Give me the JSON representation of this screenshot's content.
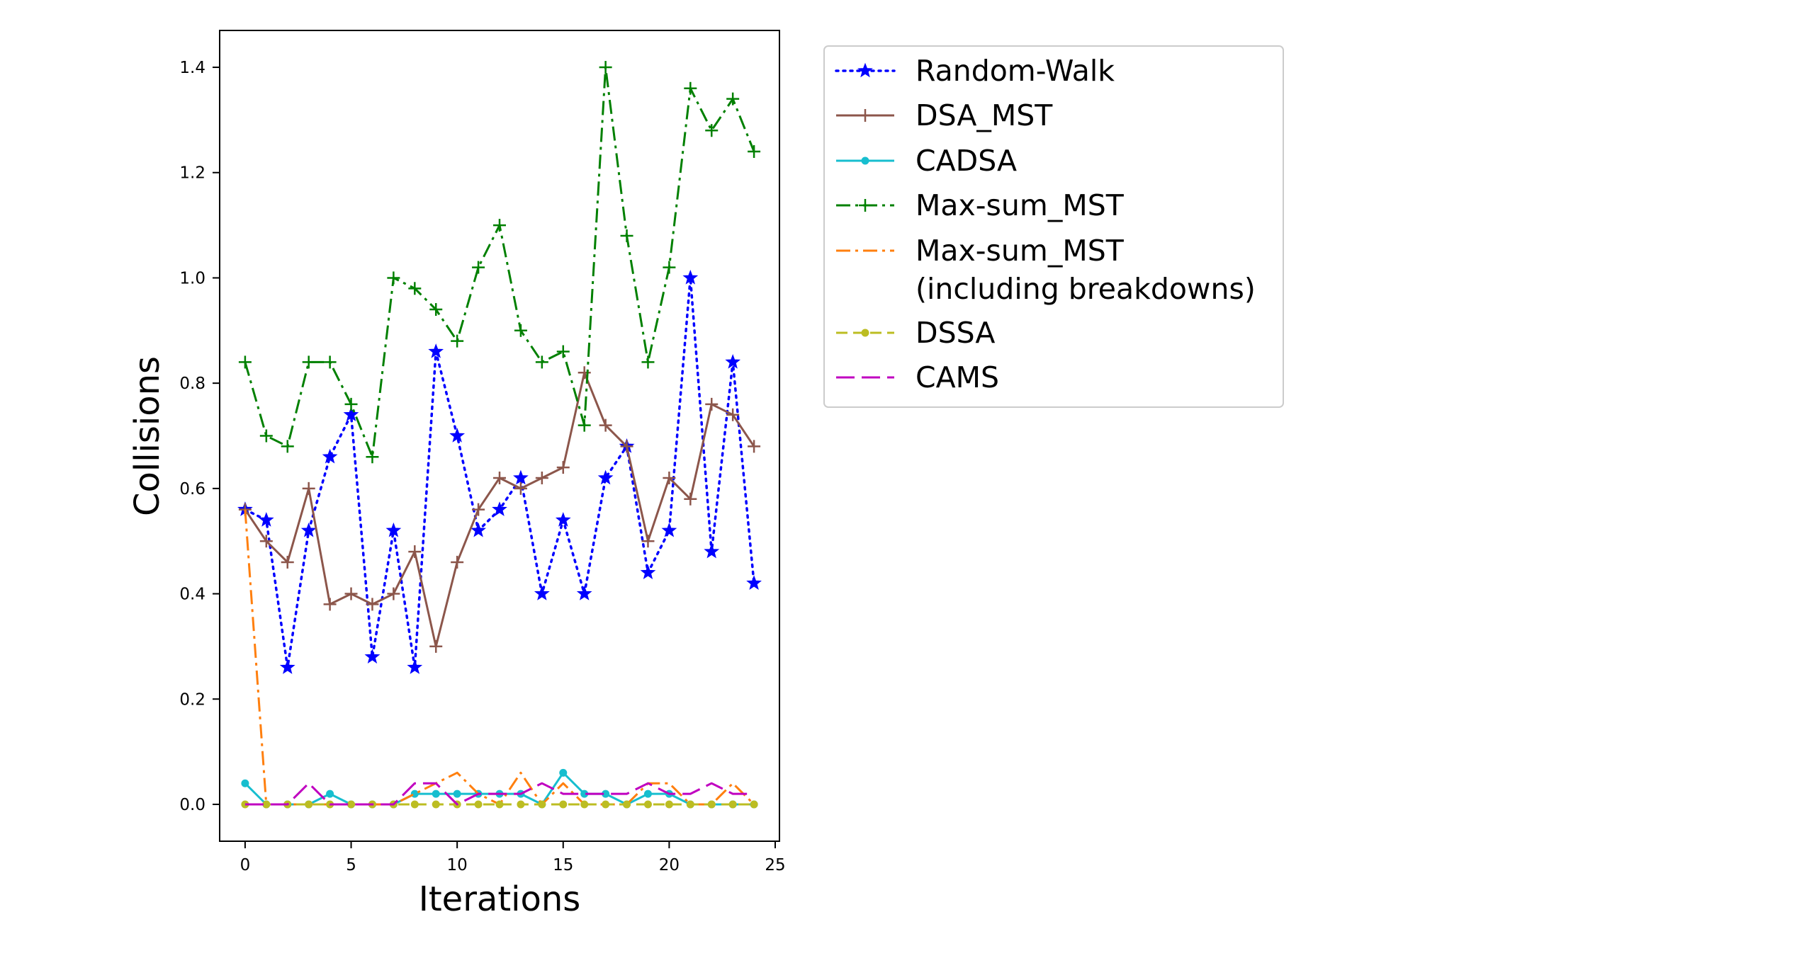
{
  "chart_data": {
    "type": "line",
    "xlabel": "Iterations",
    "ylabel": "Collisions",
    "xlim": [
      -1.2,
      25.2
    ],
    "ylim": [
      -0.07,
      1.47
    ],
    "xticks": [
      0,
      5,
      10,
      15,
      20,
      25
    ],
    "yticks": [
      0.0,
      0.2,
      0.4,
      0.6,
      0.8,
      1.0,
      1.2,
      1.4
    ],
    "xtick_labels": [
      "0",
      "5",
      "10",
      "15",
      "20",
      "25"
    ],
    "ytick_labels": [
      "0.0",
      "0.2",
      "0.4",
      "0.6",
      "0.8",
      "1.0",
      "1.2",
      "1.4"
    ],
    "grid": false,
    "legend_position": "outside-right-top",
    "x": [
      0,
      1,
      2,
      3,
      4,
      5,
      6,
      7,
      8,
      9,
      10,
      11,
      12,
      13,
      14,
      15,
      16,
      17,
      18,
      19,
      20,
      21,
      22,
      23,
      24
    ],
    "series": [
      {
        "name": "Random-Walk",
        "color": "#0000ff",
        "line_style": "dotted",
        "marker": "star",
        "values": [
          0.56,
          0.54,
          0.26,
          0.52,
          0.66,
          0.74,
          0.28,
          0.52,
          0.26,
          0.86,
          0.7,
          0.52,
          0.56,
          0.62,
          0.4,
          0.54,
          0.4,
          0.62,
          0.68,
          0.44,
          0.52,
          1.0,
          0.48,
          0.84,
          0.42
        ]
      },
      {
        "name": "DSA_MST",
        "color": "#8c564b",
        "line_style": "solid",
        "marker": "plus",
        "values": [
          0.56,
          0.5,
          0.46,
          0.6,
          0.38,
          0.4,
          0.38,
          0.4,
          0.48,
          0.3,
          0.46,
          0.56,
          0.62,
          0.6,
          0.62,
          0.64,
          0.82,
          0.72,
          0.68,
          0.5,
          0.62,
          0.58,
          0.76,
          0.74,
          0.68
        ]
      },
      {
        "name": "CADSA",
        "color": "#17becf",
        "line_style": "solid",
        "marker": "dot",
        "values": [
          0.04,
          0,
          0,
          0,
          0.02,
          0,
          0,
          0,
          0.02,
          0.02,
          0.02,
          0.02,
          0.02,
          0.02,
          0,
          0.06,
          0.02,
          0.02,
          0,
          0.02,
          0.02,
          0,
          0,
          0,
          0
        ]
      },
      {
        "name": "Max-sum_MST",
        "color": "#008000",
        "line_style": "dashdot",
        "marker": "plus",
        "values": [
          0.84,
          0.7,
          0.68,
          0.84,
          0.84,
          0.76,
          0.66,
          1.0,
          0.98,
          0.94,
          0.88,
          1.02,
          1.1,
          0.9,
          0.84,
          0.86,
          0.72,
          1.4,
          1.08,
          0.84,
          1.02,
          1.36,
          1.28,
          1.34,
          1.24
        ]
      },
      {
        "name": "Max-sum_MST",
        "name_line2": "(including breakdowns)",
        "color": "#ff7f0e",
        "line_style": "dashdot",
        "marker": "none",
        "values": [
          0.56,
          0,
          0,
          0,
          0,
          0,
          0,
          0,
          0.02,
          0.04,
          0.06,
          0.02,
          0,
          0.06,
          0,
          0.04,
          0,
          0,
          0,
          0.04,
          0.04,
          0,
          0,
          0.04,
          0
        ]
      },
      {
        "name": "DSSA",
        "color": "#bcbd22",
        "line_style": "dashed",
        "marker": "dot",
        "values": [
          0,
          0,
          0,
          0,
          0,
          0,
          0,
          0,
          0,
          0,
          0,
          0,
          0,
          0,
          0,
          0,
          0,
          0,
          0,
          0,
          0,
          0,
          0,
          0,
          0
        ]
      },
      {
        "name": "CAMS",
        "color": "#c000c0",
        "line_style": "longdash",
        "marker": "none",
        "values": [
          0,
          0,
          0,
          0.04,
          0,
          0,
          0,
          0,
          0.04,
          0.04,
          0,
          0.02,
          0.02,
          0.02,
          0.04,
          0.02,
          0.02,
          0.02,
          0.02,
          0.04,
          0.02,
          0.02,
          0.04,
          0.02,
          0.02
        ]
      }
    ]
  }
}
